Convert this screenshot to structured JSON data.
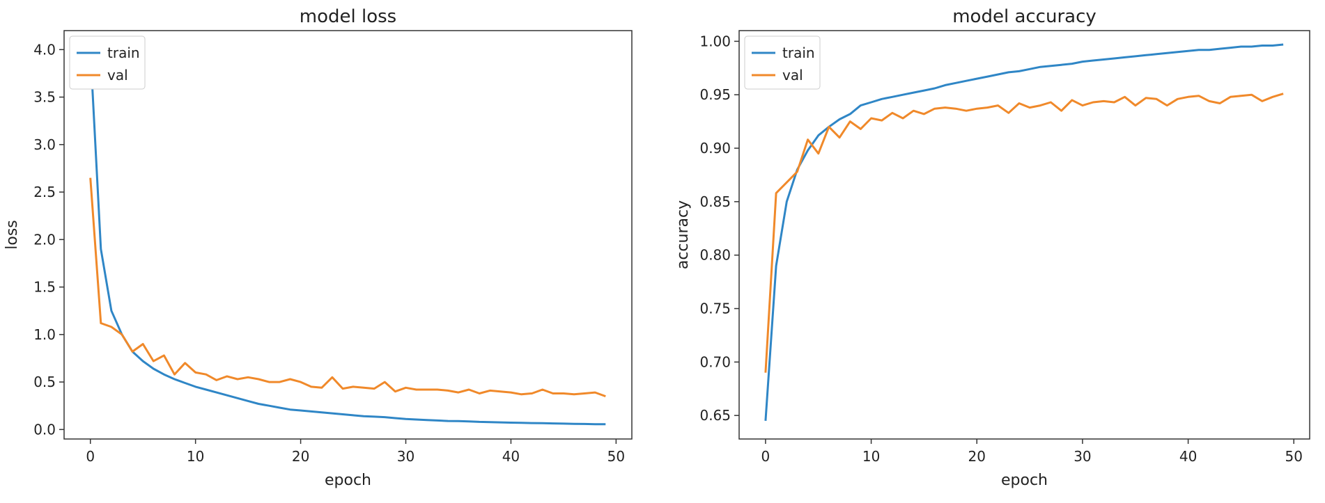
{
  "colors": {
    "train": "#2f86c6",
    "val": "#f0892a"
  },
  "chart_data": [
    {
      "type": "line",
      "title": "model loss",
      "xlabel": "epoch",
      "ylabel": "loss",
      "xlim": [
        -2.5,
        51.5
      ],
      "ylim": [
        -0.1,
        4.2
      ],
      "xticks": [
        0,
        10,
        20,
        30,
        40,
        50
      ],
      "xtick_labels": [
        "0",
        "10",
        "20",
        "30",
        "40",
        "50"
      ],
      "yticks": [
        0.0,
        0.5,
        1.0,
        1.5,
        2.0,
        2.5,
        3.0,
        3.5,
        4.0
      ],
      "ytick_labels": [
        "0.0",
        "0.5",
        "1.0",
        "1.5",
        "2.0",
        "2.5",
        "3.0",
        "3.5",
        "4.0"
      ],
      "legend_position": "top-left",
      "grid": false,
      "x": [
        0,
        1,
        2,
        3,
        4,
        5,
        6,
        7,
        8,
        9,
        10,
        11,
        12,
        13,
        14,
        15,
        16,
        17,
        18,
        19,
        20,
        21,
        22,
        23,
        24,
        25,
        26,
        27,
        28,
        29,
        30,
        31,
        32,
        33,
        34,
        35,
        36,
        37,
        38,
        39,
        40,
        41,
        42,
        43,
        44,
        45,
        46,
        47,
        48,
        49
      ],
      "series": [
        {
          "name": "train",
          "values": [
            4.0,
            1.9,
            1.25,
            1.0,
            0.82,
            0.72,
            0.64,
            0.58,
            0.53,
            0.49,
            0.45,
            0.42,
            0.39,
            0.36,
            0.33,
            0.3,
            0.27,
            0.25,
            0.23,
            0.21,
            0.2,
            0.19,
            0.18,
            0.17,
            0.16,
            0.15,
            0.14,
            0.135,
            0.13,
            0.12,
            0.11,
            0.105,
            0.1,
            0.095,
            0.09,
            0.088,
            0.085,
            0.08,
            0.078,
            0.075,
            0.072,
            0.07,
            0.068,
            0.066,
            0.064,
            0.062,
            0.06,
            0.058,
            0.056,
            0.055
          ]
        },
        {
          "name": "val",
          "values": [
            2.65,
            1.12,
            1.08,
            1.0,
            0.82,
            0.9,
            0.72,
            0.78,
            0.58,
            0.7,
            0.6,
            0.58,
            0.52,
            0.56,
            0.53,
            0.55,
            0.53,
            0.5,
            0.5,
            0.53,
            0.5,
            0.45,
            0.44,
            0.55,
            0.43,
            0.45,
            0.44,
            0.43,
            0.5,
            0.4,
            0.44,
            0.42,
            0.42,
            0.42,
            0.41,
            0.39,
            0.42,
            0.38,
            0.41,
            0.4,
            0.39,
            0.37,
            0.38,
            0.42,
            0.38,
            0.38,
            0.37,
            0.38,
            0.39,
            0.35
          ]
        }
      ]
    },
    {
      "type": "line",
      "title": "model accuracy",
      "xlabel": "epoch",
      "ylabel": "accuracy",
      "xlim": [
        -2.5,
        51.5
      ],
      "ylim": [
        0.628,
        1.01
      ],
      "xticks": [
        0,
        10,
        20,
        30,
        40,
        50
      ],
      "xtick_labels": [
        "0",
        "10",
        "20",
        "30",
        "40",
        "50"
      ],
      "yticks": [
        0.65,
        0.7,
        0.75,
        0.8,
        0.85,
        0.9,
        0.95,
        1.0
      ],
      "ytick_labels": [
        "0.65",
        "0.70",
        "0.75",
        "0.80",
        "0.85",
        "0.90",
        "0.95",
        "1.00"
      ],
      "legend_position": "top-left",
      "grid": false,
      "x": [
        0,
        1,
        2,
        3,
        4,
        5,
        6,
        7,
        8,
        9,
        10,
        11,
        12,
        13,
        14,
        15,
        16,
        17,
        18,
        19,
        20,
        21,
        22,
        23,
        24,
        25,
        26,
        27,
        28,
        29,
        30,
        31,
        32,
        33,
        34,
        35,
        36,
        37,
        38,
        39,
        40,
        41,
        42,
        43,
        44,
        45,
        46,
        47,
        48,
        49
      ],
      "series": [
        {
          "name": "train",
          "values": [
            0.645,
            0.79,
            0.85,
            0.88,
            0.898,
            0.912,
            0.92,
            0.927,
            0.932,
            0.94,
            0.943,
            0.946,
            0.948,
            0.95,
            0.952,
            0.954,
            0.956,
            0.959,
            0.961,
            0.963,
            0.965,
            0.967,
            0.969,
            0.971,
            0.972,
            0.974,
            0.976,
            0.977,
            0.978,
            0.979,
            0.981,
            0.982,
            0.983,
            0.984,
            0.985,
            0.986,
            0.987,
            0.988,
            0.989,
            0.99,
            0.991,
            0.992,
            0.992,
            0.993,
            0.994,
            0.995,
            0.995,
            0.996,
            0.996,
            0.997
          ]
        },
        {
          "name": "val",
          "values": [
            0.69,
            0.858,
            0.868,
            0.878,
            0.908,
            0.895,
            0.92,
            0.91,
            0.925,
            0.918,
            0.928,
            0.926,
            0.933,
            0.928,
            0.935,
            0.932,
            0.937,
            0.938,
            0.937,
            0.935,
            0.937,
            0.938,
            0.94,
            0.933,
            0.942,
            0.938,
            0.94,
            0.943,
            0.935,
            0.945,
            0.94,
            0.943,
            0.944,
            0.943,
            0.948,
            0.94,
            0.947,
            0.946,
            0.94,
            0.946,
            0.948,
            0.949,
            0.944,
            0.942,
            0.948,
            0.949,
            0.95,
            0.944,
            0.948,
            0.951
          ]
        }
      ]
    }
  ]
}
